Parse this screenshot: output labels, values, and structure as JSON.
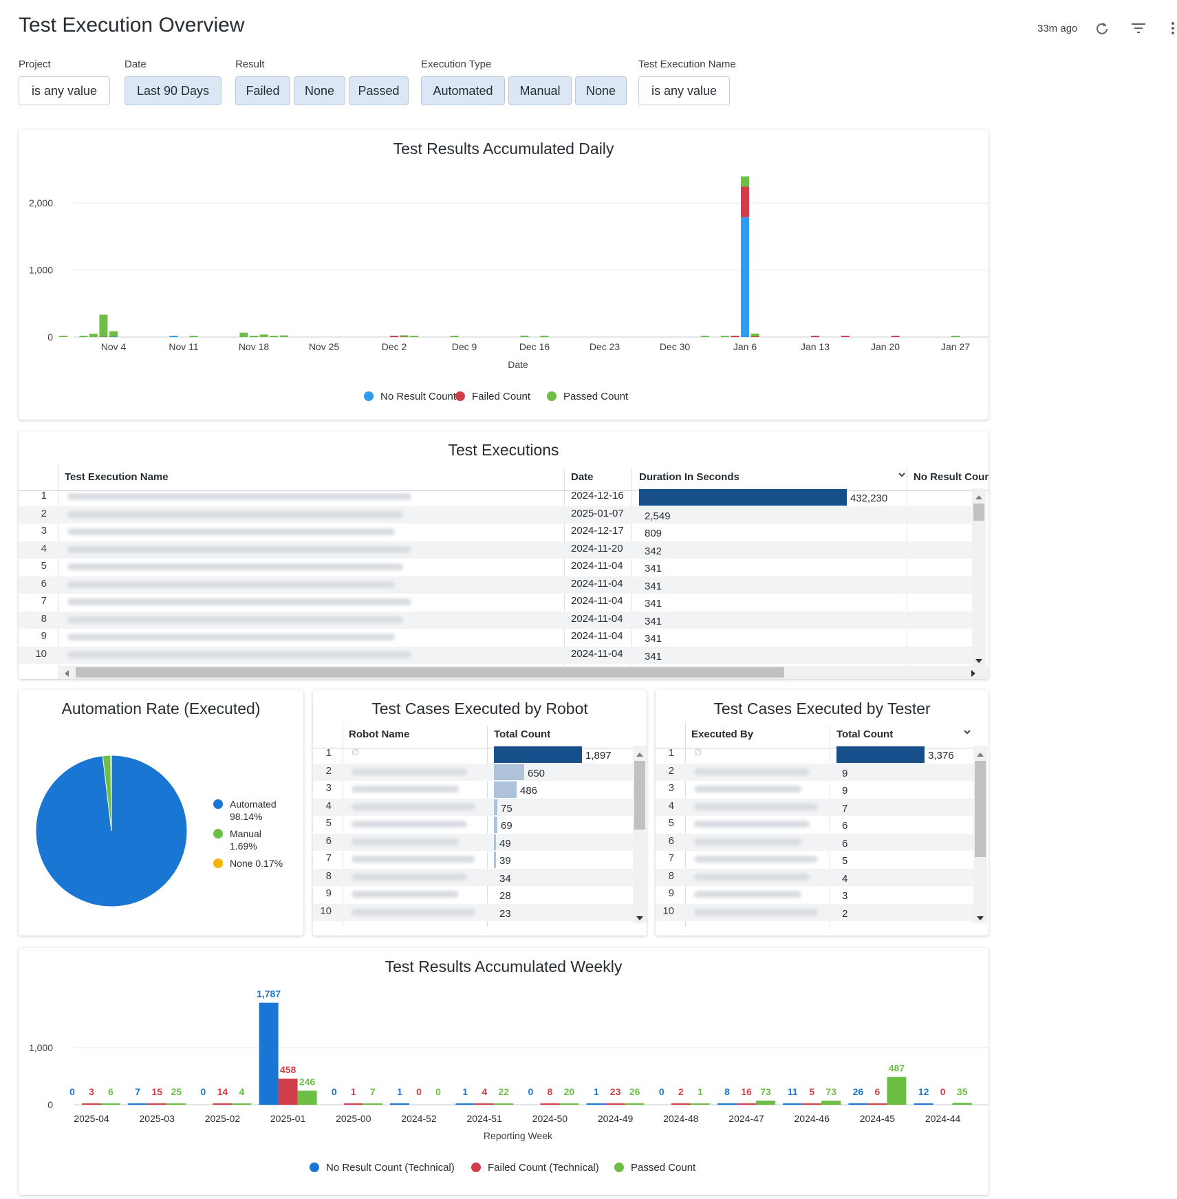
{
  "header": {
    "title": "Test Execution Overview",
    "last_updated": "33m ago",
    "icons": [
      "refresh-icon",
      "filter-icon",
      "more-vert-icon"
    ]
  },
  "filters": [
    {
      "label": "Project",
      "options": [
        {
          "text": "is any value",
          "selected": false
        }
      ]
    },
    {
      "label": "Date",
      "options": [
        {
          "text": "Last 90 Days",
          "selected": true
        }
      ]
    },
    {
      "label": "Result",
      "options": [
        {
          "text": "Failed",
          "selected": true
        },
        {
          "text": "None",
          "selected": true
        },
        {
          "text": "Passed",
          "selected": true
        }
      ]
    },
    {
      "label": "Execution Type",
      "options": [
        {
          "text": "Automated",
          "selected": true
        },
        {
          "text": "Manual",
          "selected": true
        },
        {
          "text": "None",
          "selected": true
        }
      ]
    },
    {
      "label": "Test Execution Name",
      "options": [
        {
          "text": "is any value",
          "selected": false
        }
      ]
    }
  ],
  "colors": {
    "no_result": "#2f9cf0",
    "failed": "#d13e4a",
    "passed": "#6cbe45",
    "automated": "#1976d2",
    "manual": "#6cbe45",
    "none": "#f4b400",
    "table_bar_dark": "#164f8a",
    "table_bar_light": "#aec3da"
  },
  "chart_data": [
    {
      "type": "bar",
      "stacked": true,
      "title": "Test Results Accumulated Daily",
      "xlabel": "Date",
      "ylabel": "",
      "x_ticks": [
        "Nov 4",
        "Nov 11",
        "Nov 18",
        "Nov 25",
        "Dec 2",
        "Dec 9",
        "Dec 16",
        "Dec 23",
        "Dec 30",
        "Jan 6",
        "Jan 13",
        "Jan 20",
        "Jan 27"
      ],
      "y_ticks": [
        "0",
        "1,000",
        "2,000"
      ],
      "ylim": [
        0,
        2400
      ],
      "legend_position": "bottom",
      "series": [
        {
          "name": "No Result Count",
          "color": "#2f9cf0",
          "points": [
            [
              "2024-11-04",
              5
            ],
            [
              "2024-11-10",
              10
            ],
            [
              "2025-01-06",
              1787
            ]
          ]
        },
        {
          "name": "Failed Count",
          "color": "#d13e4a",
          "points": [
            [
              "2024-11-03",
              3
            ],
            [
              "2024-11-04",
              2
            ],
            [
              "2024-12-02",
              14
            ],
            [
              "2024-12-03",
              6
            ],
            [
              "2025-01-05",
              16
            ],
            [
              "2025-01-06",
              458
            ],
            [
              "2025-01-07",
              12
            ],
            [
              "2025-01-13",
              5
            ],
            [
              "2025-01-16",
              15
            ],
            [
              "2025-01-21",
              7
            ]
          ]
        },
        {
          "name": "Passed Count",
          "color": "#6cbe45",
          "points": [
            [
              "2024-10-30",
              12
            ],
            [
              "2024-11-01",
              20
            ],
            [
              "2024-11-02",
              50
            ],
            [
              "2024-11-03",
              330
            ],
            [
              "2024-11-04",
              80
            ],
            [
              "2024-11-12",
              8
            ],
            [
              "2024-11-17",
              65
            ],
            [
              "2024-11-18",
              20
            ],
            [
              "2024-11-19",
              38
            ],
            [
              "2024-11-20",
              18
            ],
            [
              "2024-11-21",
              25
            ],
            [
              "2024-12-03",
              10
            ],
            [
              "2024-12-04",
              8
            ],
            [
              "2024-12-08",
              10
            ],
            [
              "2024-12-15",
              22
            ],
            [
              "2024-12-17",
              15
            ],
            [
              "2025-01-02",
              12
            ],
            [
              "2025-01-04",
              15
            ],
            [
              "2025-01-06",
              150
            ],
            [
              "2025-01-07",
              40
            ],
            [
              "2025-01-27",
              18
            ]
          ]
        }
      ]
    },
    {
      "type": "pie",
      "title": "Automation Rate (Executed)",
      "legend_position": "right",
      "slices": [
        {
          "name": "Automated",
          "percent": 98.14,
          "label": "98.14%",
          "color": "#1976d2"
        },
        {
          "name": "Manual",
          "percent": 1.69,
          "label": "1.69%",
          "color": "#6cbe45"
        },
        {
          "name": "None",
          "percent": 0.17,
          "label": "0.17%",
          "color": "#f4b400"
        }
      ]
    },
    {
      "type": "bar",
      "grouped": true,
      "title": "Test Results Accumulated Weekly",
      "xlabel": "Reporting Week",
      "ylabel": "",
      "categories": [
        "2025-04",
        "2025-03",
        "2025-02",
        "2025-01",
        "2025-00",
        "2024-52",
        "2024-51",
        "2024-50",
        "2024-49",
        "2024-48",
        "2024-47",
        "2024-46",
        "2024-45",
        "2024-44"
      ],
      "y_ticks": [
        "0",
        "1,000"
      ],
      "ylim": [
        0,
        1900
      ],
      "legend_position": "bottom",
      "series": [
        {
          "name": "No Result Count (Technical)",
          "color": "#1976d2",
          "values": [
            0,
            7,
            0,
            1787,
            0,
            1,
            1,
            0,
            1,
            0,
            8,
            11,
            26,
            12
          ],
          "labels": [
            "0",
            "7",
            "0",
            "1,787",
            "0",
            "1",
            "1",
            "0",
            "1",
            "0",
            "8",
            "11",
            "26",
            "12"
          ]
        },
        {
          "name": "Failed Count (Technical)",
          "color": "#d13e4a",
          "values": [
            3,
            15,
            14,
            458,
            1,
            0,
            4,
            8,
            23,
            2,
            16,
            5,
            6,
            0
          ],
          "labels": [
            "3",
            "15",
            "14",
            "458",
            "1",
            "0",
            "4",
            "8",
            "23",
            "2",
            "16",
            "5",
            "6",
            "0"
          ]
        },
        {
          "name": "Passed Count",
          "color": "#6cbe45",
          "values": [
            6,
            25,
            4,
            246,
            7,
            0,
            22,
            20,
            26,
            1,
            73,
            73,
            487,
            35
          ],
          "labels": [
            "6",
            "25",
            "4",
            "246",
            "7",
            "0",
            "22",
            "20",
            "26",
            "1",
            "73",
            "73",
            "487",
            "35"
          ]
        }
      ]
    }
  ],
  "daily_card": {
    "title": "Test Results Accumulated Daily",
    "xlabel": "Date"
  },
  "pie_card": {
    "title": "Automation Rate (Executed)"
  },
  "weekly_card": {
    "title": "Test Results Accumulated Weekly",
    "xlabel": "Reporting Week"
  },
  "executions_table": {
    "title": "Test Executions",
    "columns": [
      "Test Execution Name",
      "Date",
      "Duration In Seconds",
      "No Result Count"
    ],
    "sort_column": "Duration In Seconds",
    "rows": [
      {
        "num": "1",
        "date": "2024-12-16",
        "duration": 432230,
        "duration_label": "432,230"
      },
      {
        "num": "2",
        "date": "2025-01-07",
        "duration": 2549,
        "duration_label": "2,549"
      },
      {
        "num": "3",
        "date": "2024-12-17",
        "duration": 809,
        "duration_label": "809"
      },
      {
        "num": "4",
        "date": "2024-11-20",
        "duration": 342,
        "duration_label": "342"
      },
      {
        "num": "5",
        "date": "2024-11-04",
        "duration": 341,
        "duration_label": "341"
      },
      {
        "num": "6",
        "date": "2024-11-04",
        "duration": 341,
        "duration_label": "341"
      },
      {
        "num": "7",
        "date": "2024-11-04",
        "duration": 341,
        "duration_label": "341"
      },
      {
        "num": "8",
        "date": "2024-11-04",
        "duration": 341,
        "duration_label": "341"
      },
      {
        "num": "9",
        "date": "2024-11-04",
        "duration": 341,
        "duration_label": "341"
      },
      {
        "num": "10",
        "date": "2024-11-04",
        "duration": 341,
        "duration_label": "341"
      }
    ]
  },
  "robot_table": {
    "title": "Test Cases Executed by Robot",
    "columns": [
      "Robot Name",
      "Total Count"
    ],
    "rows": [
      {
        "num": "1",
        "name": "∅",
        "count": 1897,
        "count_label": "1,897"
      },
      {
        "num": "2",
        "name": "",
        "count": 650,
        "count_label": "650"
      },
      {
        "num": "3",
        "name": "",
        "count": 486,
        "count_label": "486"
      },
      {
        "num": "4",
        "name": "",
        "count": 75,
        "count_label": "75"
      },
      {
        "num": "5",
        "name": "",
        "count": 69,
        "count_label": "69"
      },
      {
        "num": "6",
        "name": "",
        "count": 49,
        "count_label": "49"
      },
      {
        "num": "7",
        "name": "",
        "count": 39,
        "count_label": "39"
      },
      {
        "num": "8",
        "name": "",
        "count": 34,
        "count_label": "34"
      },
      {
        "num": "9",
        "name": "",
        "count": 28,
        "count_label": "28"
      },
      {
        "num": "10",
        "name": "",
        "count": 23,
        "count_label": "23"
      }
    ]
  },
  "tester_table": {
    "title": "Test Cases Executed by Tester",
    "columns": [
      "Executed By",
      "Total Count"
    ],
    "sort_column": "Total Count",
    "rows": [
      {
        "num": "1",
        "name": "∅",
        "count": 3376,
        "count_label": "3,376"
      },
      {
        "num": "2",
        "name": "",
        "count": 9,
        "count_label": "9"
      },
      {
        "num": "3",
        "name": "",
        "count": 9,
        "count_label": "9"
      },
      {
        "num": "4",
        "name": "",
        "count": 7,
        "count_label": "7"
      },
      {
        "num": "5",
        "name": "",
        "count": 6,
        "count_label": "6"
      },
      {
        "num": "6",
        "name": "",
        "count": 6,
        "count_label": "6"
      },
      {
        "num": "7",
        "name": "",
        "count": 5,
        "count_label": "5"
      },
      {
        "num": "8",
        "name": "",
        "count": 4,
        "count_label": "4"
      },
      {
        "num": "9",
        "name": "",
        "count": 3,
        "count_label": "3"
      },
      {
        "num": "10",
        "name": "",
        "count": 2,
        "count_label": "2"
      }
    ]
  }
}
